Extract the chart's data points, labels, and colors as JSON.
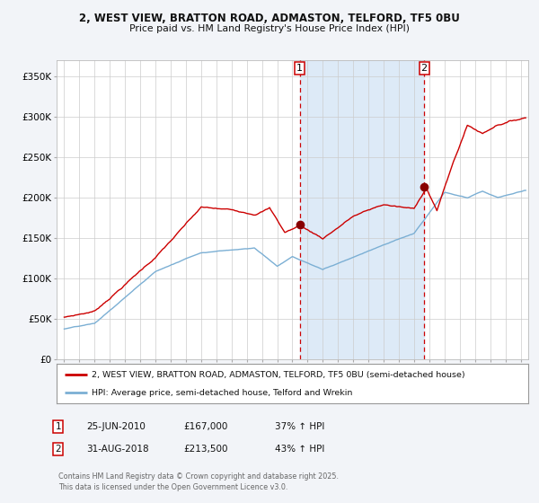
{
  "title1": "2, WEST VIEW, BRATTON ROAD, ADMASTON, TELFORD, TF5 0BU",
  "title2": "Price paid vs. HM Land Registry's House Price Index (HPI)",
  "background_color": "#f2f4f8",
  "plot_bg_color": "#ffffff",
  "red_line_color": "#cc0000",
  "blue_line_color": "#7bafd4",
  "vline_color": "#cc0000",
  "vshade_color": "#ddeaf7",
  "marker_color": "#880000",
  "ylim": [
    0,
    370000
  ],
  "yticks": [
    0,
    50000,
    100000,
    150000,
    200000,
    250000,
    300000,
    350000
  ],
  "ytick_labels": [
    "£0",
    "£50K",
    "£100K",
    "£150K",
    "£200K",
    "£250K",
    "£300K",
    "£350K"
  ],
  "sale1_date_num": 2010.48,
  "sale1_price": 167000,
  "sale1_label": "1",
  "sale2_date_num": 2018.66,
  "sale2_price": 213500,
  "sale2_label": "2",
  "legend_red": "2, WEST VIEW, BRATTON ROAD, ADMASTON, TELFORD, TF5 0BU (semi-detached house)",
  "legend_blue": "HPI: Average price, semi-detached house, Telford and Wrekin",
  "footer": "Contains HM Land Registry data © Crown copyright and database right 2025.\nThis data is licensed under the Open Government Licence v3.0.",
  "xmin": 1994.5,
  "xmax": 2025.5
}
